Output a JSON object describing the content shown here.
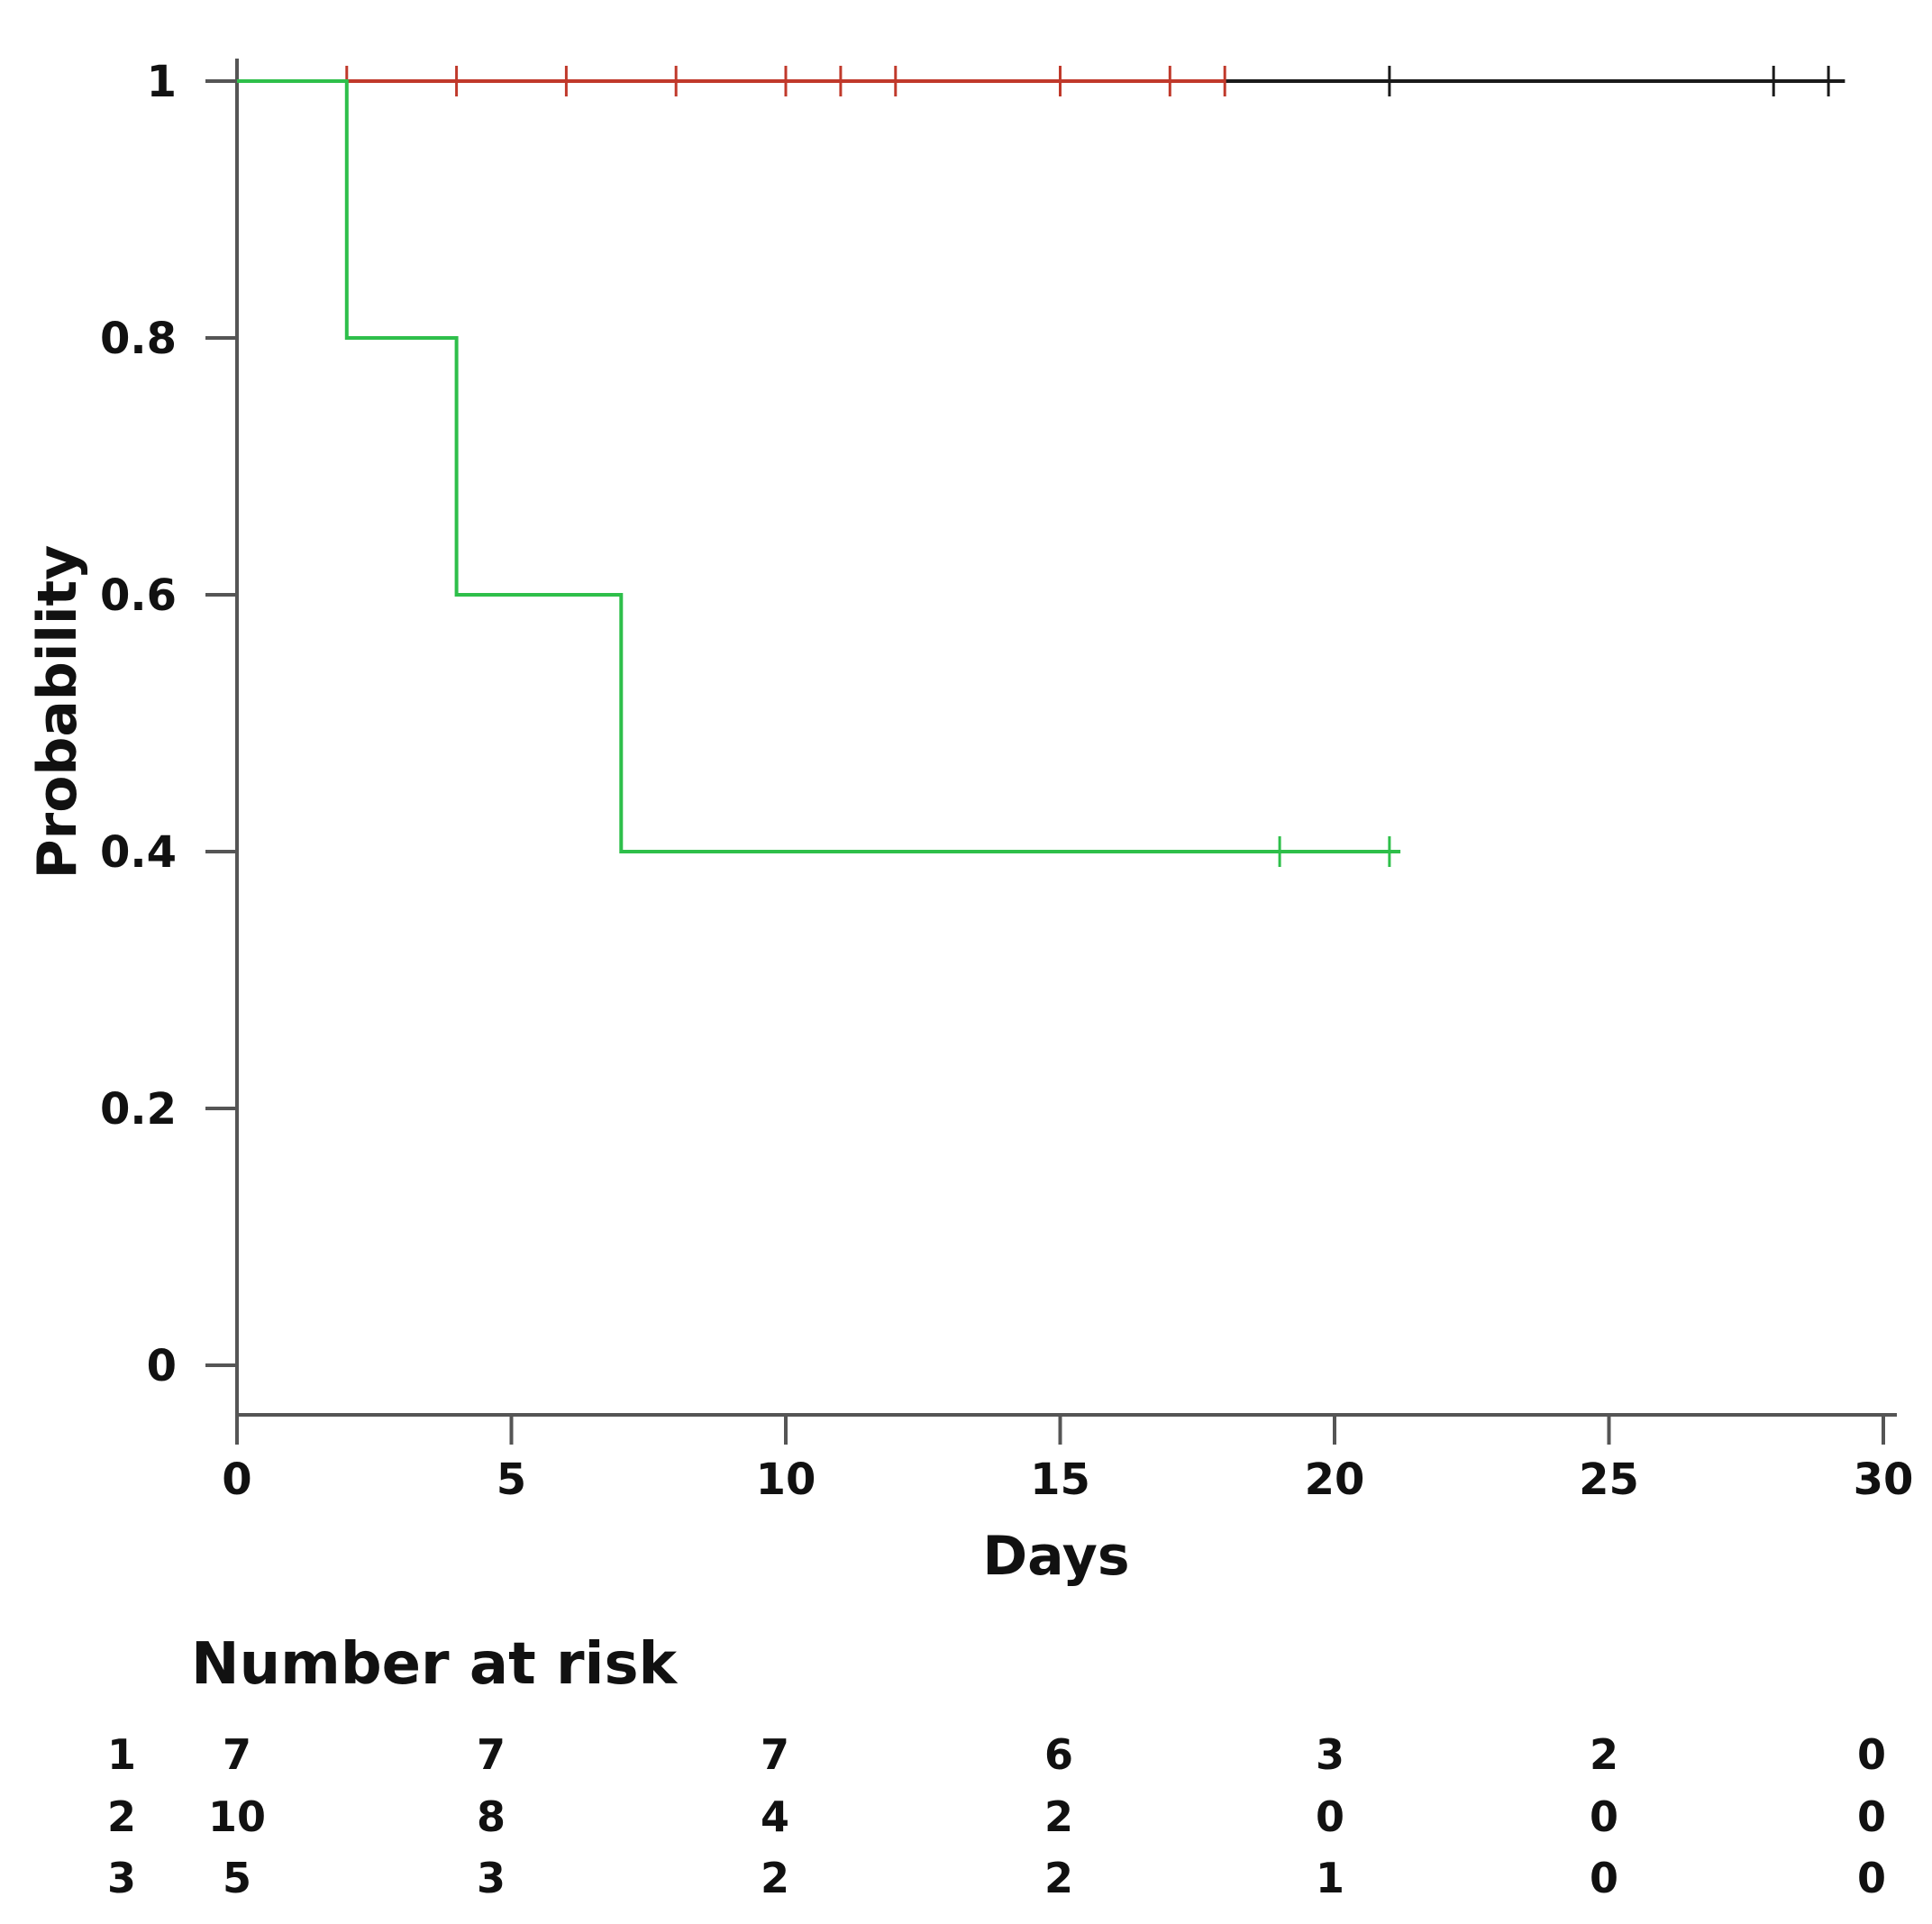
{
  "chart_data": {
    "type": "line",
    "subtype": "kaplan-meier",
    "title": "",
    "xlabel": "Days",
    "ylabel": "Probability",
    "xlim": [
      0,
      30
    ],
    "ylim": [
      0,
      1
    ],
    "x_ticks": [
      0,
      5,
      10,
      15,
      20,
      25,
      30
    ],
    "y_ticks": [
      0,
      0.2,
      0.4,
      0.6,
      0.8,
      1
    ],
    "y_tick_labels": [
      "0",
      "0.2",
      "0.4",
      "0.6",
      "0.8",
      "1"
    ],
    "grid": false,
    "legend": "none",
    "series": [
      {
        "name": "1",
        "color": "#1a1a1a",
        "steps": [
          [
            0,
            1
          ],
          [
            29.3,
            1
          ]
        ],
        "censored": [
          [
            21,
            1
          ],
          [
            28,
            1
          ],
          [
            29,
            1
          ]
        ]
      },
      {
        "name": "2",
        "color": "#c0392b",
        "steps": [
          [
            0,
            1
          ],
          [
            18,
            1
          ]
        ],
        "censored": [
          [
            2,
            1
          ],
          [
            4,
            1
          ],
          [
            6,
            1
          ],
          [
            8,
            1
          ],
          [
            10,
            1
          ],
          [
            11,
            1
          ],
          [
            12,
            1
          ],
          [
            15,
            1
          ],
          [
            17,
            1
          ],
          [
            18,
            1
          ]
        ]
      },
      {
        "name": "3",
        "color": "#2ebf4a",
        "steps": [
          [
            0,
            1
          ],
          [
            2,
            1
          ],
          [
            2,
            0.8
          ],
          [
            4,
            0.8
          ],
          [
            4,
            0.6
          ],
          [
            7,
            0.6
          ],
          [
            7,
            0.4
          ],
          [
            21.2,
            0.4
          ]
        ],
        "censored": [
          [
            19,
            0.4
          ],
          [
            21,
            0.4
          ]
        ]
      }
    ],
    "risk_table": {
      "title": "Number at risk",
      "times": [
        0,
        5,
        10,
        15,
        20,
        25,
        30
      ],
      "rows": [
        {
          "label": "1",
          "counts": [
            7,
            7,
            7,
            6,
            3,
            2,
            0
          ]
        },
        {
          "label": "2",
          "counts": [
            10,
            8,
            4,
            2,
            0,
            0,
            0
          ]
        },
        {
          "label": "3",
          "counts": [
            5,
            3,
            2,
            2,
            1,
            0,
            0
          ]
        }
      ]
    }
  }
}
